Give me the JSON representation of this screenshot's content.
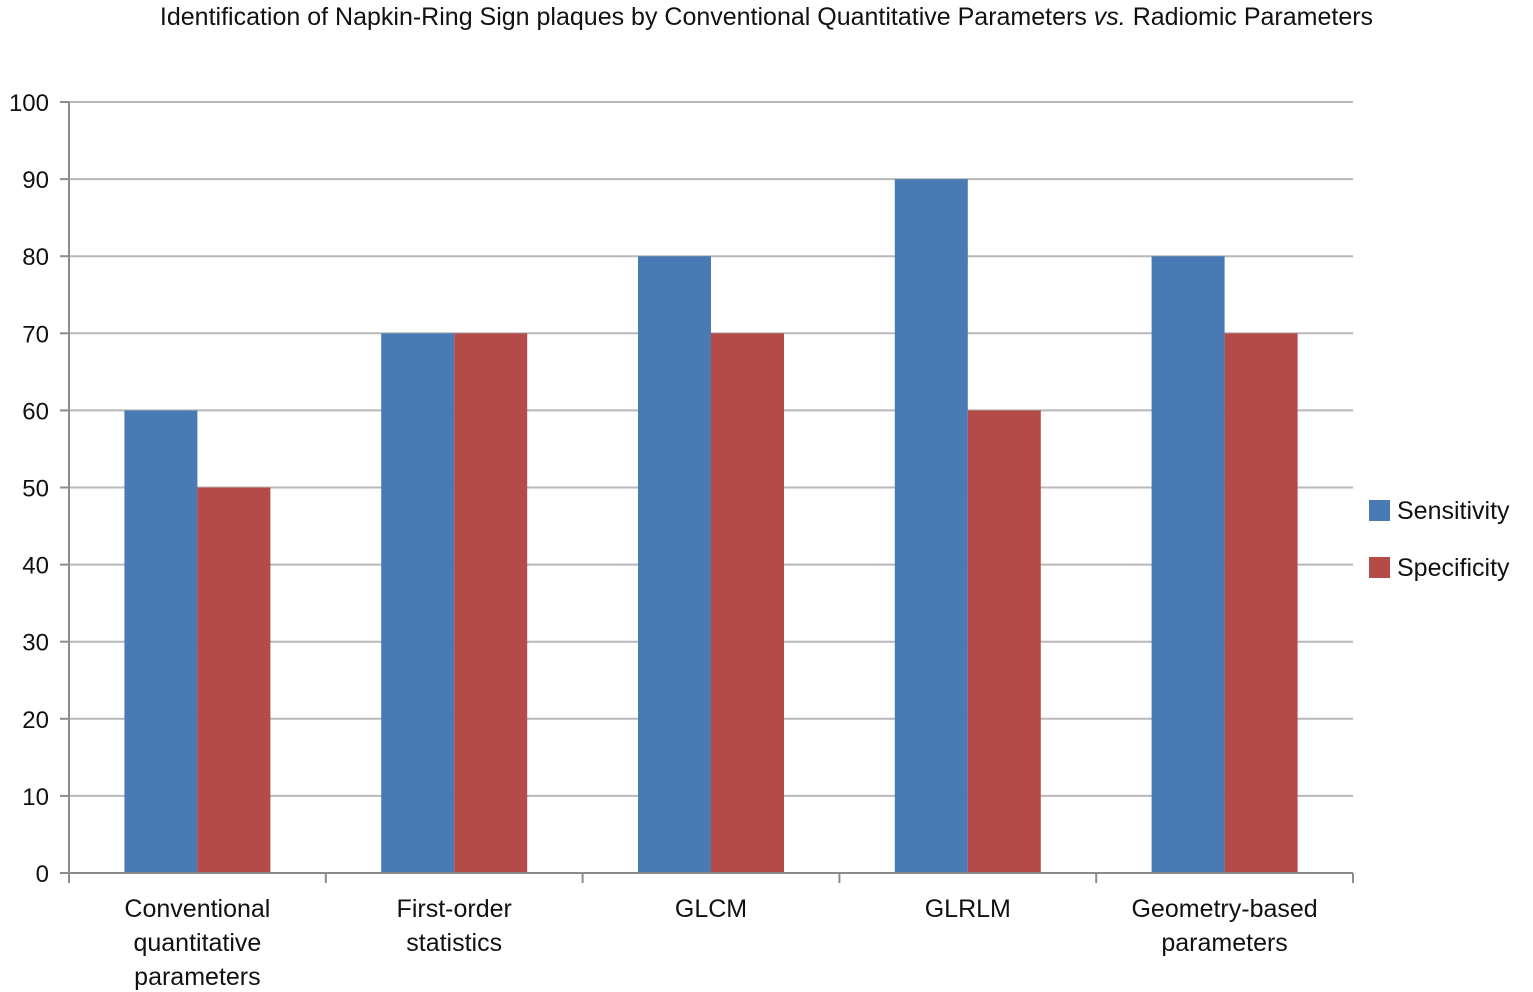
{
  "chart_data": {
    "type": "bar",
    "title": {
      "before": "Identification of Napkin-Ring Sign plaques by Conventional Quantitative Parameters ",
      "emphasis": "vs.",
      "after": " Radiomic Parameters"
    },
    "categories": [
      [
        "Conventional",
        "quantitative",
        "parameters"
      ],
      [
        "First-order",
        "statistics"
      ],
      [
        "GLCM"
      ],
      [
        "GLRLM"
      ],
      [
        "Geometry-based",
        "parameters"
      ]
    ],
    "series": [
      {
        "name": "Sensitivity",
        "color": "#4a7ab4",
        "values": [
          60,
          70,
          80,
          90,
          80
        ]
      },
      {
        "name": "Specificity",
        "color": "#b54b49",
        "values": [
          50,
          70,
          70,
          60,
          70
        ]
      }
    ],
    "y_ticks": [
      "0",
      "10",
      "20",
      "30",
      "40",
      "50",
      "60",
      "70",
      "80",
      "90",
      "100"
    ],
    "ylim": [
      0,
      100
    ],
    "grid": true,
    "legend_position": "right"
  }
}
